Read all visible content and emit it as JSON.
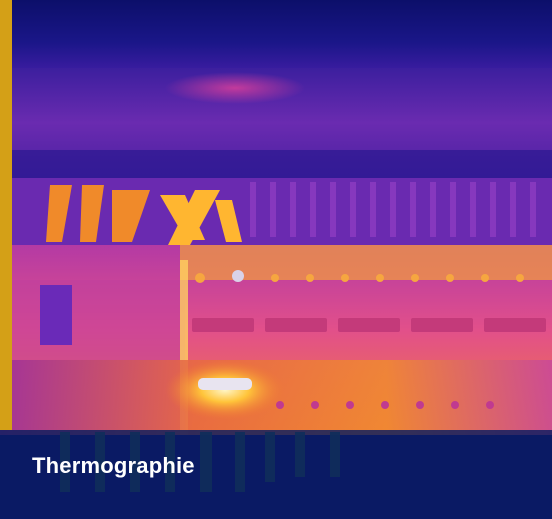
{
  "caption": {
    "label": "Thermographie"
  },
  "colors": {
    "accent": "#d4a017",
    "caption_bg": "#081c5f",
    "caption_text": "#ffffff",
    "thermal_cold": "#12127a",
    "thermal_warm": "#d62c9a",
    "thermal_hot": "#ffb020"
  },
  "image": {
    "subject": "thermal-image-electrical-panel-icon"
  }
}
